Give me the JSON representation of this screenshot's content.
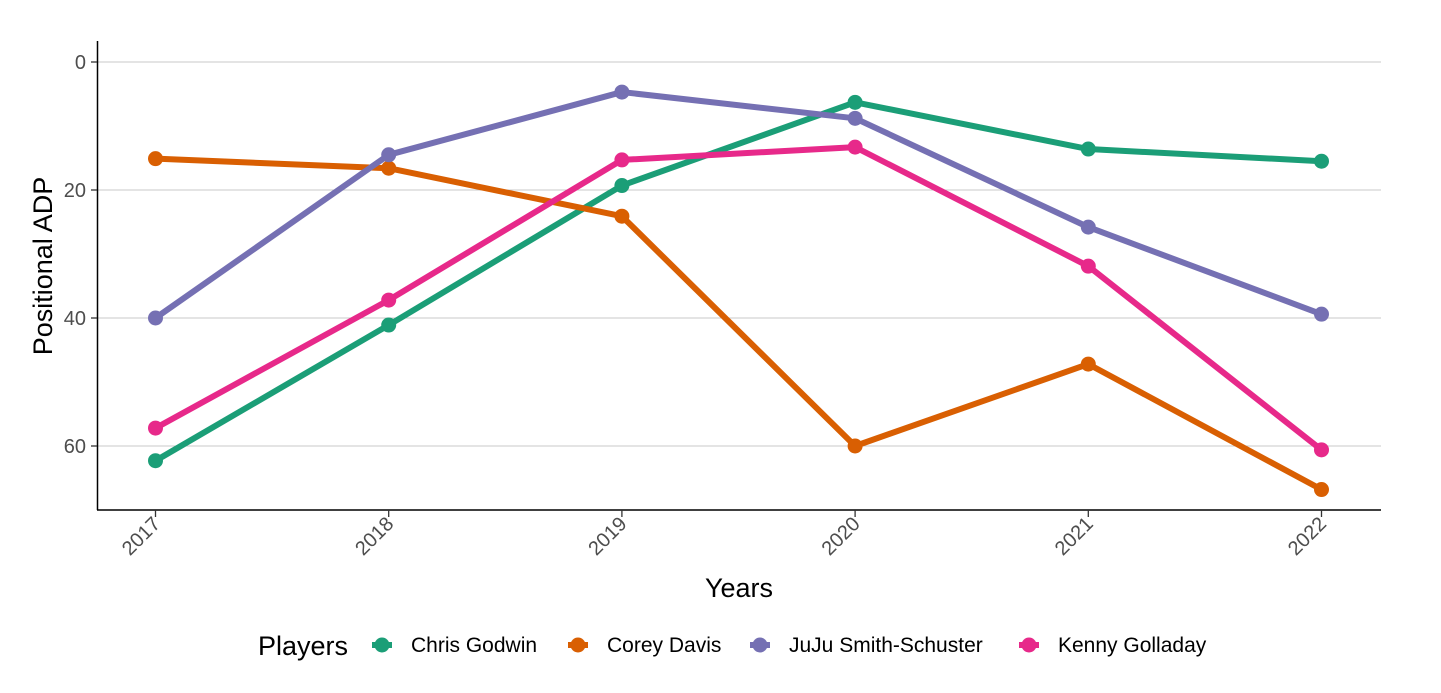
{
  "chart_data": {
    "type": "line",
    "xlabel": "Years",
    "ylabel": "Positional ADP",
    "x": [
      2017,
      2018,
      2019,
      2020,
      2021,
      2022
    ],
    "x_tick_labels": [
      "2017",
      "2018",
      "2019",
      "2020",
      "2021",
      "2022"
    ],
    "y_ticks": [
      0,
      20,
      40,
      60
    ],
    "y_tick_labels": [
      "0",
      "20",
      "40",
      "60"
    ],
    "ylim": [
      70,
      -3
    ],
    "y_reversed": true,
    "grid": "horizontal major gridlines",
    "legend": {
      "title": "Players",
      "position": "bottom"
    },
    "series": [
      {
        "name": "Chris Godwin",
        "color": "#1b9e77",
        "values": [
          62.3,
          41.1,
          19.3,
          6.3,
          13.6,
          15.5
        ]
      },
      {
        "name": "Corey Davis",
        "color": "#d95f02",
        "values": [
          15.1,
          16.6,
          24.1,
          60.0,
          47.2,
          66.8
        ]
      },
      {
        "name": "JuJu Smith-Schuster",
        "color": "#7570b3",
        "values": [
          40.0,
          14.5,
          4.7,
          8.8,
          25.8,
          39.4
        ]
      },
      {
        "name": "Kenny Golladay",
        "color": "#e7298a",
        "values": [
          57.2,
          37.2,
          15.3,
          13.3,
          31.9,
          60.6
        ]
      }
    ]
  }
}
